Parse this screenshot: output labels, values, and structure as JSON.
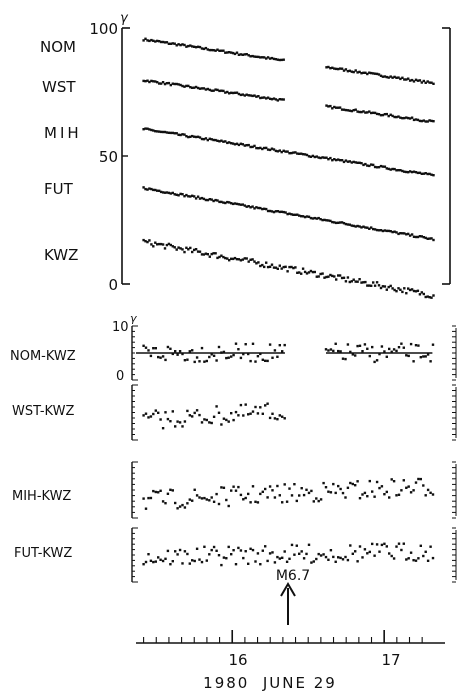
{
  "chart_data": {
    "type": "scatter",
    "title": "",
    "xlabel": "1980  JUNE 29",
    "x_ticks": [
      "16",
      "17"
    ],
    "x_range": [
      15.35,
      17.35
    ],
    "event": {
      "label": "M6.7",
      "x": 16.33
    },
    "upper_panel": {
      "unit_label": "γ",
      "y_ticks": [
        "100",
        "50",
        "0"
      ],
      "ylim": [
        0,
        100
      ],
      "series": [
        {
          "name": "NOM",
          "start": 96,
          "end": 78,
          "gap": [
            16.33,
            16.6
          ]
        },
        {
          "name": "WST",
          "start": 80,
          "end": 63,
          "gap": [
            16.33,
            16.6
          ]
        },
        {
          "name": "MIH",
          "start": 61,
          "end": 42,
          "gap": []
        },
        {
          "name": "FUT",
          "start": 38,
          "end": 17,
          "gap": []
        },
        {
          "name": "KWZ",
          "start": 17,
          "end": -5,
          "gap": []
        }
      ]
    },
    "lower_panels": [
      {
        "name": "NOM-KWZ",
        "y_ticks": [
          "10",
          "0"
        ],
        "unit_label": "γ",
        "level": 0.5,
        "trend": 0.0,
        "gap": [
          16.33,
          16.6
        ],
        "mean_lines": [
          [
            15.35,
            16.33
          ],
          [
            16.6,
            17.3
          ]
        ]
      },
      {
        "name": "WST-KWZ",
        "level": 0.35,
        "trend": 0.55,
        "gap": [
          16.33,
          17.4
        ],
        "mean_lines": []
      },
      {
        "name": "MIH-KWZ",
        "level": 0.3,
        "trend": 0.45,
        "gap": [],
        "mean_lines": []
      },
      {
        "name": "FUT-KWZ",
        "level": 0.45,
        "trend": 0.2,
        "gap": [],
        "mean_lines": []
      }
    ]
  }
}
